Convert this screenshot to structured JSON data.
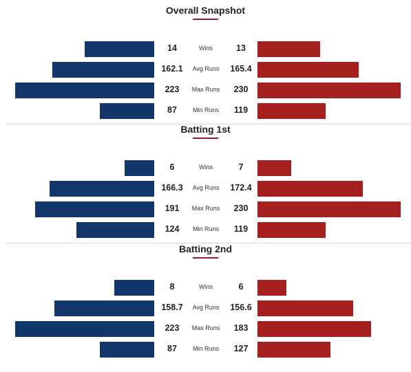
{
  "chart_data": {
    "type": "bar",
    "orientation": "horizontal-diverging",
    "colors": {
      "left": "#13376b",
      "right": "#a3201f",
      "accent": "#8a1c3a"
    },
    "sections": [
      {
        "title": "Overall Snapshot",
        "rows": [
          {
            "metric": "Wins",
            "left": "14",
            "right": "13"
          },
          {
            "metric": "Avg Runs",
            "left": "162.1",
            "right": "165.4"
          },
          {
            "metric": "Max Runs",
            "left": "223",
            "right": "230"
          },
          {
            "metric": "Min Runs",
            "left": "87",
            "right": "119"
          }
        ]
      },
      {
        "title": "Batting 1st",
        "rows": [
          {
            "metric": "Wins",
            "left": "6",
            "right": "7"
          },
          {
            "metric": "Avg Runs",
            "left": "166.3",
            "right": "172.4"
          },
          {
            "metric": "Max Runs",
            "left": "191",
            "right": "230"
          },
          {
            "metric": "Min Runs",
            "left": "124",
            "right": "119"
          }
        ]
      },
      {
        "title": "Batting 2nd",
        "rows": [
          {
            "metric": "Wins",
            "left": "8",
            "right": "6"
          },
          {
            "metric": "Avg Runs",
            "left": "158.7",
            "right": "156.6"
          },
          {
            "metric": "Max Runs",
            "left": "223",
            "right": "183"
          },
          {
            "metric": "Min Runs",
            "left": "87",
            "right": "127"
          }
        ]
      }
    ]
  }
}
